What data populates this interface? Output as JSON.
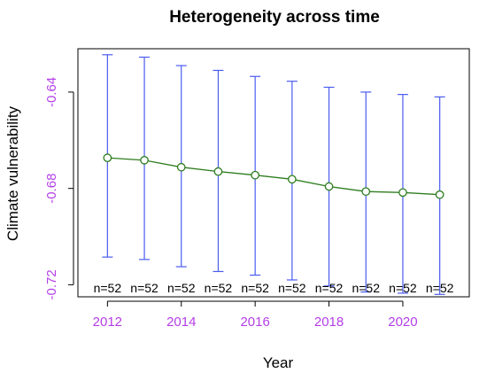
{
  "chart_data": {
    "type": "line",
    "title": "Heterogeneity across time",
    "xlabel": "Year",
    "ylabel": "Climate vulnerability",
    "x": [
      2012,
      2013,
      2014,
      2015,
      2016,
      2017,
      2018,
      2019,
      2020,
      2021
    ],
    "x_ticks": [
      "2012",
      "2014",
      "2016",
      "2018",
      "2020"
    ],
    "y_ticks": [
      "-0.64",
      "-0.68",
      "-0.72"
    ],
    "y_tick_values": [
      -0.64,
      -0.68,
      -0.72
    ],
    "xlim": [
      2011.2,
      2021.8
    ],
    "ylim": [
      -0.725,
      -0.622
    ],
    "series": [
      {
        "mean": [
          -0.6673,
          -0.6683,
          -0.6712,
          -0.673,
          -0.6745,
          -0.6762,
          -0.6792,
          -0.6813,
          -0.6817,
          -0.6826
        ],
        "upper": [
          -0.6245,
          -0.6255,
          -0.629,
          -0.631,
          -0.6335,
          -0.6355,
          -0.638,
          -0.64,
          -0.641,
          -0.642
        ],
        "lower": [
          -0.7085,
          -0.7095,
          -0.7125,
          -0.7145,
          -0.716,
          -0.718,
          -0.7205,
          -0.723,
          -0.7235,
          -0.724
        ]
      }
    ],
    "n_labels": [
      "n=52",
      "n=52",
      "n=52",
      "n=52",
      "n=52",
      "n=52",
      "n=52",
      "n=52",
      "n=52",
      "n=52"
    ],
    "colors": {
      "line": "#2e7d1f",
      "error_bar": "#4a5cf0",
      "tick_label": "#b43ee8",
      "axis": "#000000"
    },
    "grid": false
  }
}
